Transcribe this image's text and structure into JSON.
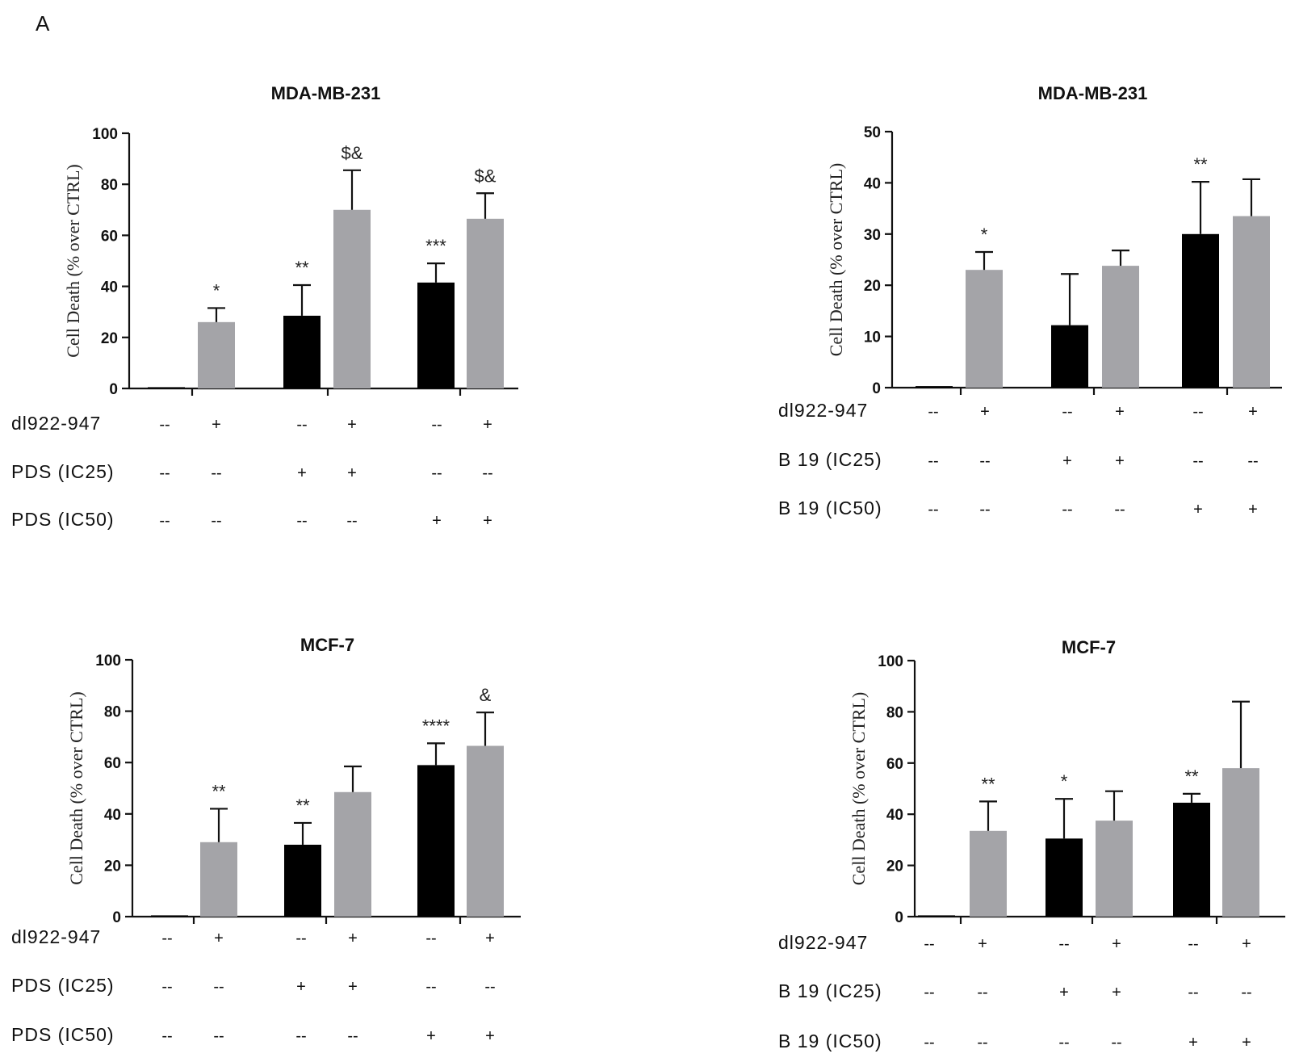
{
  "panel_label": "A",
  "colors": {
    "black": "#000000",
    "gray": "#a4a4a8"
  },
  "chart_data": [
    {
      "type": "bar",
      "title": "MDA-MB-231",
      "ylabel": "Cell Death (% over CTRL)",
      "ylim": [
        0,
        100
      ],
      "yticks": [
        0,
        20,
        40,
        60,
        80,
        100
      ],
      "colors": [
        "black",
        "gray",
        "black",
        "gray",
        "black",
        "gray"
      ],
      "values": [
        0.5,
        26,
        28.5,
        70,
        41.5,
        66.5
      ],
      "errors": [
        0,
        5.5,
        12,
        15.5,
        7.5,
        10
      ],
      "annotations": [
        "",
        "*",
        "**",
        "$&",
        "***",
        "$&"
      ],
      "conditions": [
        {
          "label": "dl922-947",
          "values": [
            "--",
            "+",
            "--",
            "+",
            "--",
            "+"
          ]
        },
        {
          "label": "PDS (IC25)",
          "values": [
            "--",
            "--",
            "+",
            "+",
            "--",
            "--"
          ]
        },
        {
          "label": "PDS (IC50)",
          "values": [
            "--",
            "--",
            "--",
            "--",
            "+",
            "+"
          ]
        }
      ]
    },
    {
      "type": "bar",
      "title": "MDA-MB-231",
      "ylabel": "Cell Death (% over CTRL)",
      "ylim": [
        0,
        50
      ],
      "yticks": [
        0,
        10,
        20,
        30,
        40,
        50
      ],
      "colors": [
        "black",
        "gray",
        "black",
        "gray",
        "black",
        "gray"
      ],
      "values": [
        0.3,
        23,
        12.2,
        23.8,
        30,
        33.5
      ],
      "errors": [
        0,
        3.5,
        10,
        3,
        10.2,
        7.2
      ],
      "annotations": [
        "",
        "*",
        "",
        "",
        "**",
        ""
      ],
      "conditions": [
        {
          "label": "dl922-947",
          "values": [
            "--",
            "+",
            "--",
            "+",
            "--",
            "+"
          ]
        },
        {
          "label": "B 19 (IC25)",
          "values": [
            "--",
            "--",
            "+",
            "+",
            "--",
            "--"
          ]
        },
        {
          "label": "B 19 (IC50)",
          "values": [
            "--",
            "--",
            "--",
            "--",
            "+",
            "+"
          ]
        }
      ]
    },
    {
      "type": "bar",
      "title": "MCF-7",
      "ylabel": "Cell Death (% over CTRL)",
      "ylim": [
        0,
        100
      ],
      "yticks": [
        0,
        20,
        40,
        60,
        80,
        100
      ],
      "colors": [
        "black",
        "gray",
        "black",
        "gray",
        "black",
        "gray"
      ],
      "values": [
        0.5,
        29,
        28,
        48.5,
        59,
        66.5
      ],
      "errors": [
        0,
        13,
        8.5,
        10,
        8.5,
        13
      ],
      "annotations": [
        "",
        "**",
        "**",
        "",
        "****",
        "&"
      ],
      "conditions": [
        {
          "label": "dl922-947",
          "values": [
            "--",
            "+",
            "--",
            "+",
            "--",
            "+"
          ]
        },
        {
          "label": "PDS (IC25)",
          "values": [
            "--",
            "--",
            "+",
            "+",
            "--",
            "--"
          ]
        },
        {
          "label": "PDS (IC50)",
          "values": [
            "--",
            "--",
            "--",
            "--",
            "+",
            "+"
          ]
        }
      ]
    },
    {
      "type": "bar",
      "title": "MCF-7",
      "ylabel": "Cell Death (% over CTRL)",
      "ylim": [
        0,
        100
      ],
      "yticks": [
        0,
        20,
        40,
        60,
        80,
        100
      ],
      "colors": [
        "black",
        "gray",
        "black",
        "gray",
        "black",
        "gray"
      ],
      "values": [
        0.5,
        33.5,
        30.5,
        37.5,
        44.5,
        58
      ],
      "errors": [
        0,
        11.5,
        15.5,
        11.5,
        3.5,
        26
      ],
      "annotations": [
        "",
        "**",
        "*",
        "",
        "**",
        ""
      ],
      "conditions": [
        {
          "label": "dl922-947",
          "values": [
            "--",
            "+",
            "--",
            "+",
            "--",
            "+"
          ]
        },
        {
          "label": "B 19 (IC25)",
          "values": [
            "--",
            "--",
            "+",
            "+",
            "--",
            "--"
          ]
        },
        {
          "label": "B 19 (IC50)",
          "values": [
            "--",
            "--",
            "--",
            "--",
            "+",
            "+"
          ]
        }
      ]
    }
  ]
}
